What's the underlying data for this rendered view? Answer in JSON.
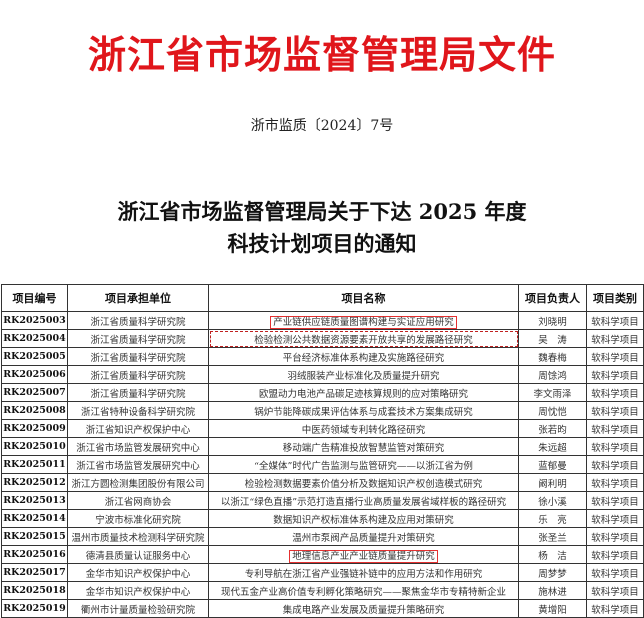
{
  "header": {
    "title": "浙江省市场监督管理局文件",
    "doc_number": "浙市监质〔2024〕7号",
    "heading_line1": "浙江省市场监督管理局关于下达 2025 年度",
    "heading_line2": "科技计划项目的通知"
  },
  "table": {
    "columns": [
      "项目编号",
      "项目承担单位",
      "项目名称",
      "项目负责人",
      "项目类别"
    ],
    "rows": [
      [
        "RK2025003",
        "浙江省质量科学研究院",
        "产业链供应链质量图谱构建与实证应用研究",
        "刘晓明",
        "软科学项目"
      ],
      [
        "RK2025004",
        "浙江省质量科学研究院",
        "检验检测公共数据资源要素开放共享的发展路径研究",
        "吴　涛",
        "软科学项目"
      ],
      [
        "RK2025005",
        "浙江省质量科学研究院",
        "平台经济标准体系构建及实施路径研究",
        "魏春梅",
        "软科学项目"
      ],
      [
        "RK2025006",
        "浙江省质量科学研究院",
        "羽绒服装产业标准化及质量提升研究",
        "周馀鸿",
        "软科学项目"
      ],
      [
        "RK2025007",
        "浙江省质量科学研究院",
        "欧盟动力电池产品碳足迹核算规则的应对策略研究",
        "李文雨泽",
        "软科学项目"
      ],
      [
        "RK2025008",
        "浙江省特种设备科学研究院",
        "锅炉节能降碳成果评估体系与成套技术方案集成研究",
        "周忱恺",
        "软科学项目"
      ],
      [
        "RK2025009",
        "浙江省知识产权保护中心",
        "中医药领域专利转化路径研究",
        "张若昀",
        "软科学项目"
      ],
      [
        "RK2025010",
        "浙江省市场监管发展研究中心",
        "移动端广告精准投放智慧监管对策研究",
        "朱远超",
        "软科学项目"
      ],
      [
        "RK2025011",
        "浙江省市场监管发展研究中心",
        "“全媒体”时代广告监测与监管研究——以浙江省为例",
        "蓝郁曼",
        "软科学项目"
      ],
      [
        "RK2025012",
        "浙江方圆检测集团股份有限公司",
        "检验检测数据要素价值分析及数据知识产权创造模式研究",
        "阚利明",
        "软科学项目"
      ],
      [
        "RK2025013",
        "浙江省网商协会",
        "以浙江“绿色直播”示范打造直播行业高质量发展省域样板的路径研究",
        "徐小溪",
        "软科学项目"
      ],
      [
        "RK2025014",
        "宁波市标准化研究院",
        "数据知识产权标准体系构建及应用对策研究",
        "乐　亮",
        "软科学项目"
      ],
      [
        "RK2025015",
        "温州市质量技术检测科学研究院",
        "温州市泵阀产品质量提升对策研究",
        "张圣兰",
        "软科学项目"
      ],
      [
        "RK2025016",
        "德清县质量认证服务中心",
        "地理信息产业产业链质量提升研究",
        "杨　洁",
        "软科学项目"
      ],
      [
        "RK2025017",
        "金华市知识产权保护中心",
        "专利导航在浙江省产业强链补链中的应用方法和作用研究",
        "周梦梦",
        "软科学项目"
      ],
      [
        "RK2025018",
        "金华市知识产权保护中心",
        "现代五金产业高价值专利孵化策略研究——聚焦金华市专精特新企业",
        "施林进",
        "软科学项目"
      ],
      [
        "RK2025019",
        "衢州市计量质量检验研究院",
        "集成电路产业发展及质量提升策略研究",
        "黄增阳",
        "软科学项目"
      ]
    ]
  },
  "colors": {
    "title_red": "#e0161b",
    "highlight_red": "#e53030"
  },
  "highlights": {
    "solid": [
      "RK2025003",
      "RK2025016"
    ],
    "dashed": [
      "RK2025004"
    ]
  }
}
